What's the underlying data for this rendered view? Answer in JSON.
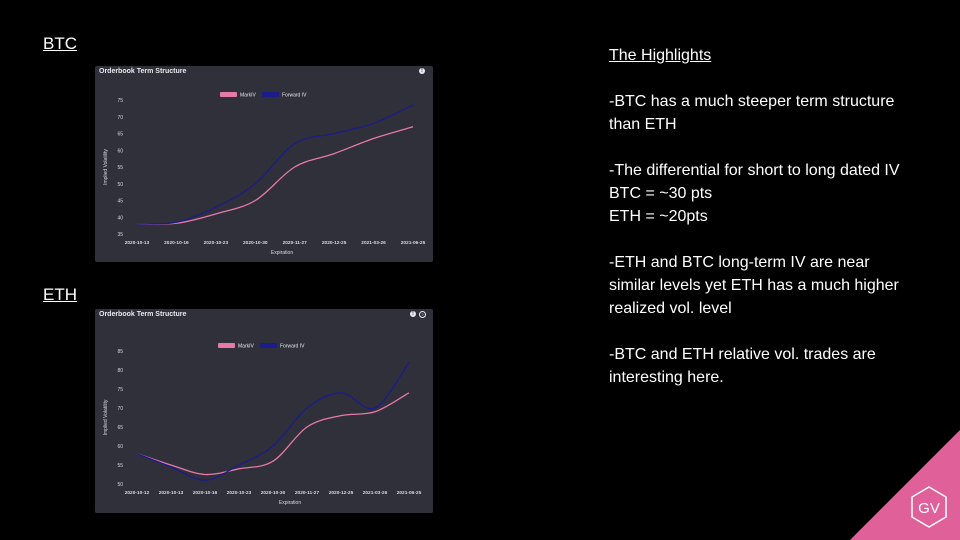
{
  "sections": {
    "btc_label": "BTC",
    "eth_label": "ETH"
  },
  "highlights": {
    "title": "The Highlights",
    "p1": "-BTC has a much steeper term structure than ETH",
    "p2a": "-The differential for short to long dated IV",
    "p2b": "BTC = ~30 pts",
    "p2c": "ETH = ~20pts",
    "p3": "-ETH and BTC long-term IV are near similar levels yet ETH has a much higher realized vol. level",
    "p4": "-BTC and ETH relative vol. trades are interesting here."
  },
  "logo": {
    "text": "GV",
    "color": "#e0609a"
  },
  "colors": {
    "panel_bg": "#2f3039",
    "mark": "#e579a8",
    "forward": "#1c1c8a"
  },
  "chart_data": [
    {
      "type": "line",
      "title": "Orderbook Term Structure",
      "xlabel": "Expiration",
      "ylabel": "Implied Volatility",
      "ylim": [
        35,
        75
      ],
      "yticks": [
        35,
        40,
        45,
        50,
        55,
        60,
        65,
        70,
        75
      ],
      "x": [
        "2020-10-13",
        "2020-10-16",
        "2020-10-23",
        "2020-10-30",
        "2020-11-27",
        "2020-12-25",
        "2021-03-26",
        "2021-06-25"
      ],
      "legend": "top-center",
      "series": [
        {
          "name": "MarkIV",
          "color": "#e579a8",
          "values": [
            38,
            38.2,
            41,
            45,
            55,
            59,
            63.5,
            67
          ]
        },
        {
          "name": "Forward IV",
          "color": "#1c1c8a",
          "values": [
            38,
            38.5,
            43,
            50,
            62,
            65,
            68,
            73.5
          ]
        }
      ]
    },
    {
      "type": "line",
      "title": "Orderbook Term Structure",
      "xlabel": "Expiration",
      "ylabel": "Implied Volatility",
      "ylim": [
        50,
        85
      ],
      "yticks": [
        50,
        55,
        60,
        65,
        70,
        75,
        80,
        85
      ],
      "x": [
        "2020-10-12",
        "2020-10-13",
        "2020-10-16",
        "2020-10-23",
        "2020-10-30",
        "2020-11-27",
        "2020-12-25",
        "2021-03-26",
        "2021-06-25"
      ],
      "legend": "top-center",
      "series": [
        {
          "name": "MarkIV",
          "color": "#e579a8",
          "values": [
            58,
            55,
            52.5,
            54,
            56,
            65,
            68,
            69,
            74
          ]
        },
        {
          "name": "Forward IV",
          "color": "#1c1c8a",
          "values": [
            58,
            54.5,
            51,
            55,
            60,
            70,
            74,
            70,
            82
          ]
        }
      ]
    }
  ]
}
